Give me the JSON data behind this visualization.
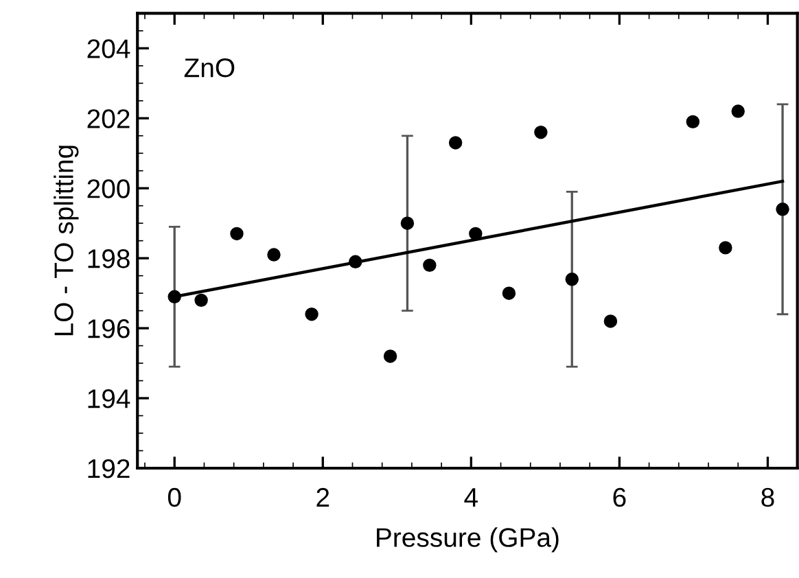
{
  "chart_data": {
    "type": "scatter",
    "xlabel": "Pressure (GPa)",
    "ylabel": "LO - TO splitting",
    "annotations": [
      "ZnO"
    ],
    "series": [
      {
        "color": "#000000",
        "marker": "circle",
        "x": [
          0,
          0.36,
          0.84,
          1.34,
          1.85,
          2.44,
          2.91,
          3.14,
          3.44,
          3.79,
          4.06,
          4.51,
          4.94,
          5.36,
          5.88,
          6.99,
          7.43,
          7.6,
          8.2
        ],
        "values": [
          196.9,
          196.8,
          198.7,
          198.1,
          196.4,
          197.9,
          195.2,
          199.0,
          197.8,
          201.3,
          198.7,
          197.0,
          201.6,
          197.4,
          196.2,
          201.9,
          198.3,
          202.2,
          199.4
        ],
        "errors": [
          2.0,
          null,
          null,
          null,
          null,
          null,
          null,
          2.5,
          null,
          null,
          null,
          null,
          null,
          2.5,
          null,
          null,
          null,
          null,
          3.0
        ]
      },
      {
        "type": "line",
        "color": "#000000",
        "x": [
          0,
          8.2
        ],
        "values": [
          196.9,
          200.2
        ]
      }
    ],
    "xlim": [
      -0.5,
      8.4
    ],
    "ylim": [
      192,
      205
    ],
    "xticks": [
      0,
      2,
      4,
      6,
      8
    ],
    "yticks": [
      192,
      194,
      196,
      198,
      200,
      202,
      204
    ],
    "grid": false,
    "legend": false
  }
}
